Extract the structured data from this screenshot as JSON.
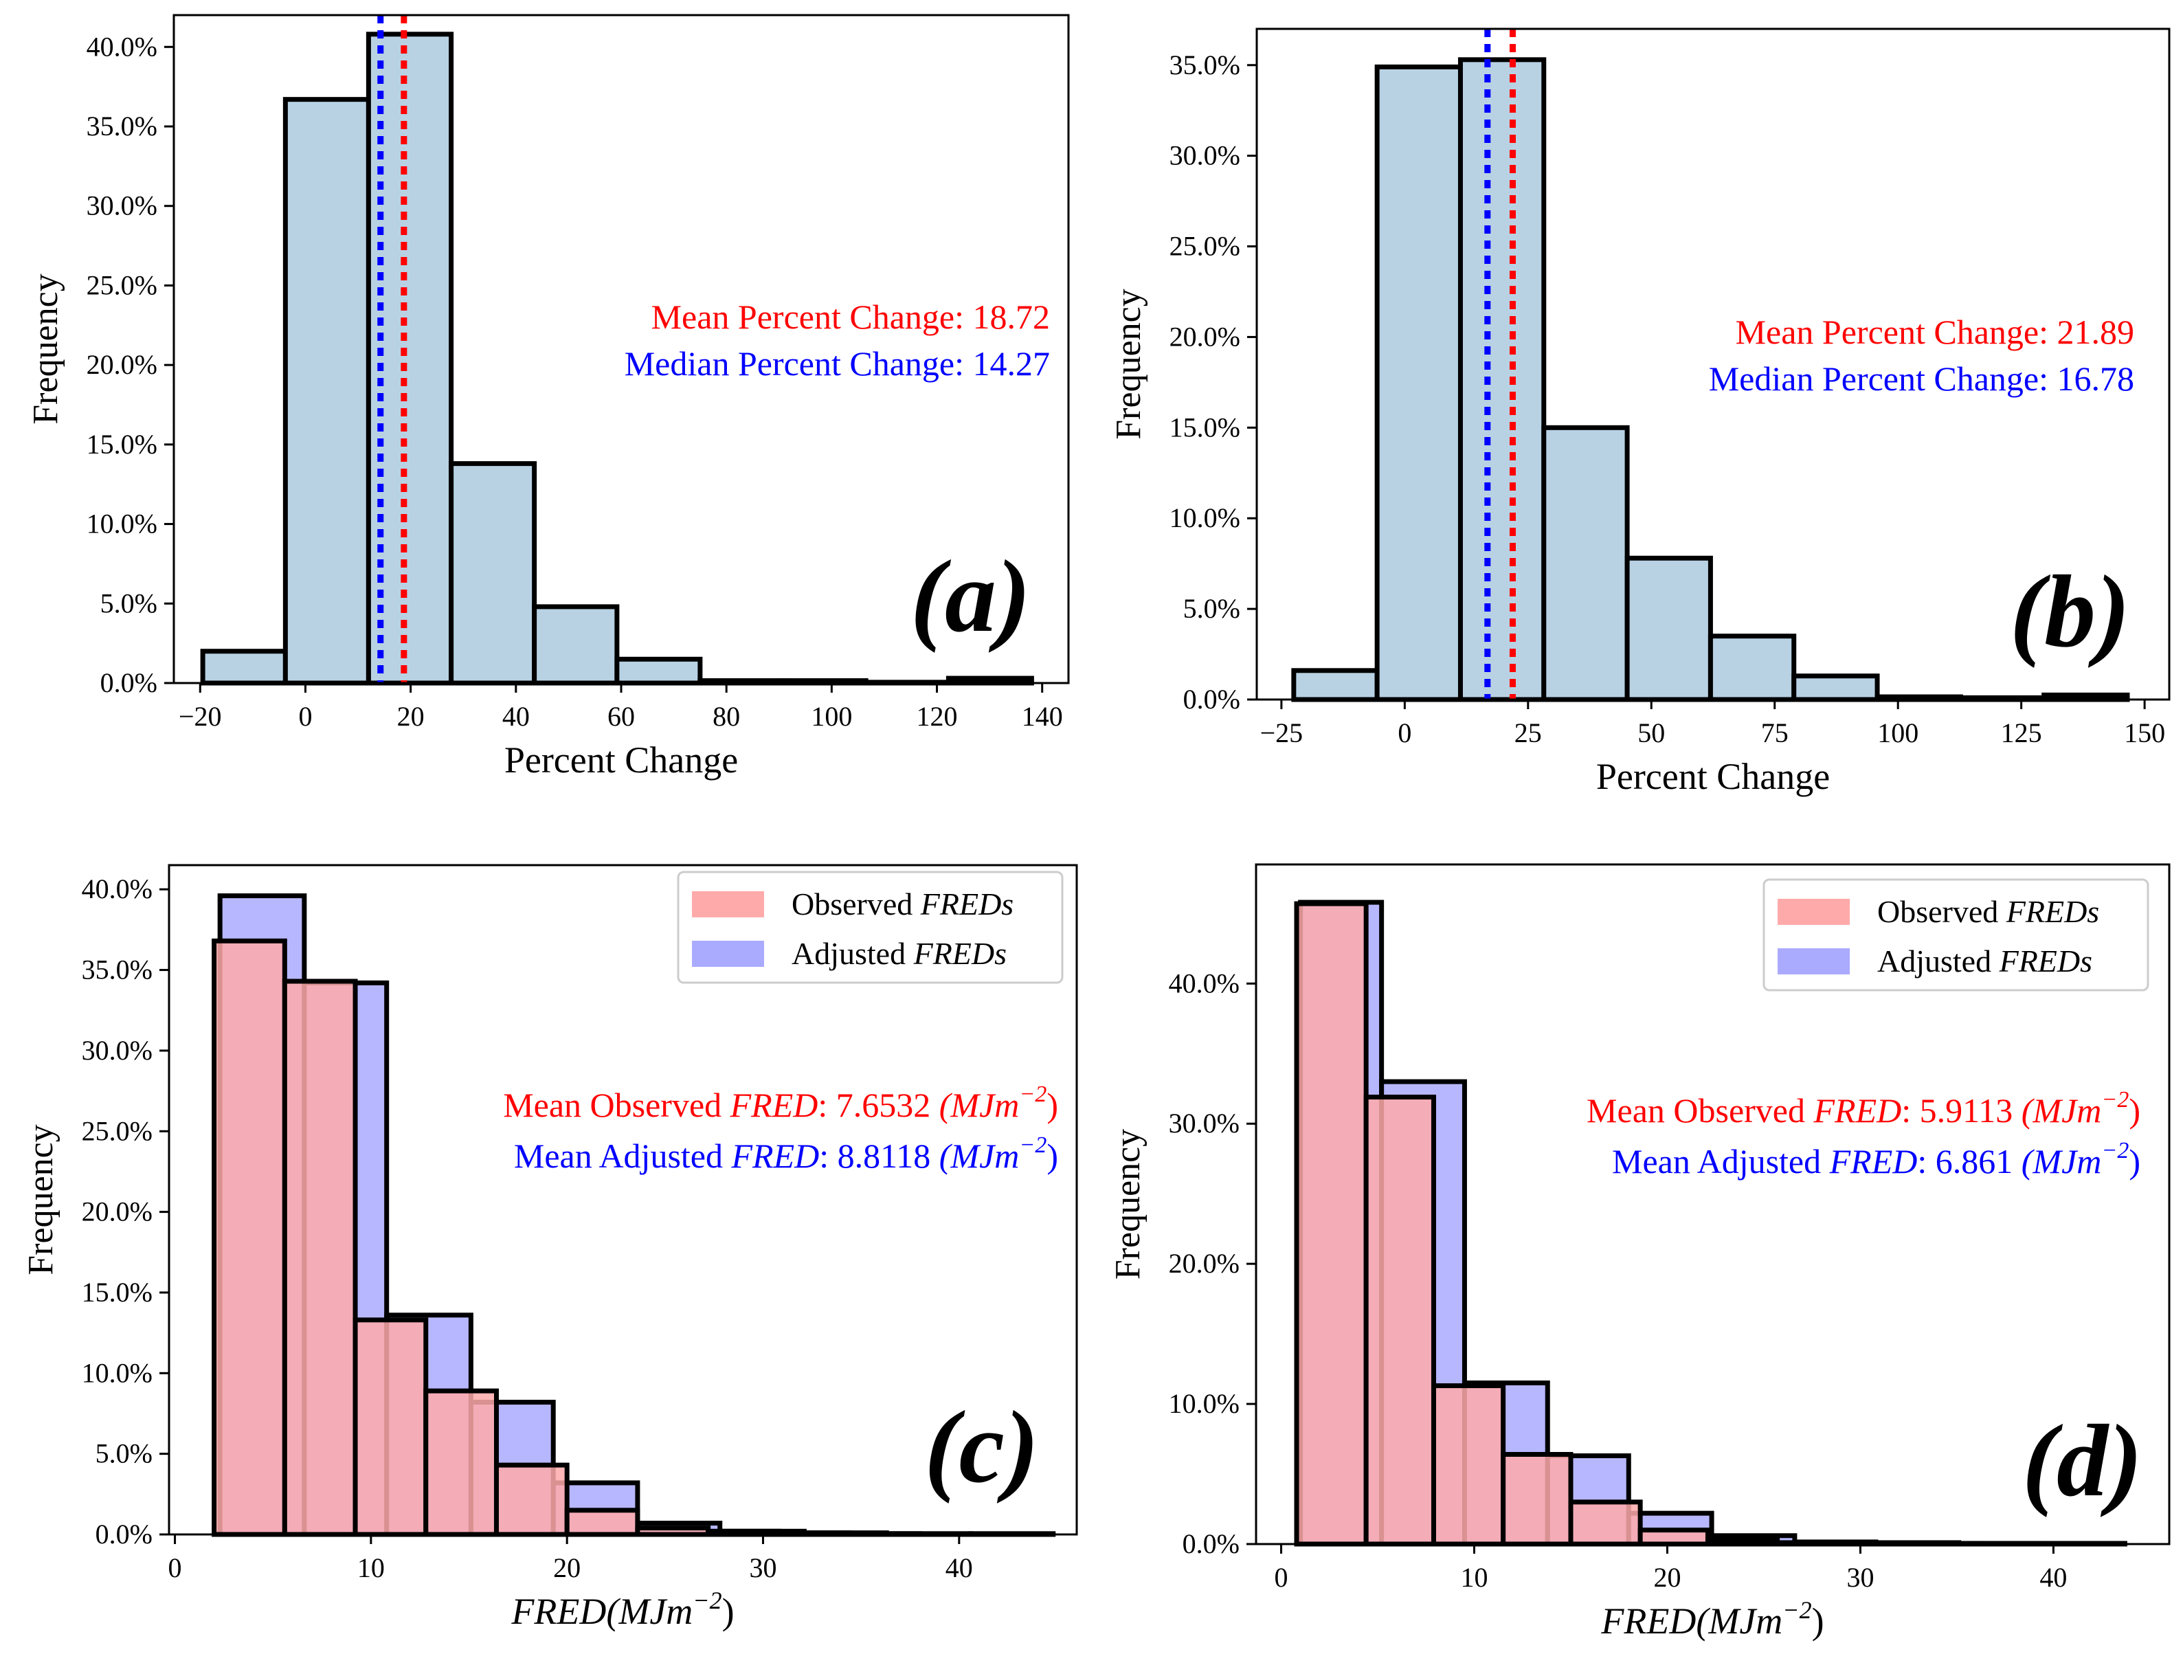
{
  "chart_data": [
    {
      "panel": "a",
      "type": "histogram",
      "panel_label": "(a)",
      "xlabel": "Percent Change",
      "ylabel": "Frequency",
      "xlim": [
        -25,
        145
      ],
      "ylim": [
        0,
        42
      ],
      "xticks": [
        -20,
        0,
        20,
        40,
        60,
        80,
        100,
        120,
        140
      ],
      "xtick_labels": [
        "−20",
        "0",
        "20",
        "40",
        "60",
        "80",
        "100",
        "120",
        "140"
      ],
      "yticks": [
        0,
        5,
        10,
        15,
        20,
        25,
        30,
        35,
        40
      ],
      "ytick_labels": [
        "0.0%",
        "5.0%",
        "10.0%",
        "15.0%",
        "20.0%",
        "25.0%",
        "30.0%",
        "35.0%",
        "40.0%"
      ],
      "bins": [
        {
          "x0": -19.5,
          "x1": -3.8,
          "value": 2.0
        },
        {
          "x0": -3.8,
          "x1": 12.0,
          "value": 36.7
        },
        {
          "x0": 12.0,
          "x1": 27.7,
          "value": 40.8
        },
        {
          "x0": 27.7,
          "x1": 43.5,
          "value": 13.8
        },
        {
          "x0": 43.5,
          "x1": 59.2,
          "value": 4.8
        },
        {
          "x0": 59.2,
          "x1": 75.0,
          "value": 1.5
        },
        {
          "x0": 75.0,
          "x1": 90.7,
          "value": 0.15
        },
        {
          "x0": 90.7,
          "x1": 106.5,
          "value": 0.15
        },
        {
          "x0": 106.5,
          "x1": 122.2,
          "value": 0.05
        },
        {
          "x0": 122.2,
          "x1": 138.0,
          "value": 0.3
        }
      ],
      "bar_color": "#b8d2e4",
      "vlines": [
        {
          "x": 14.27,
          "color": "#0000ff",
          "label": "median"
        },
        {
          "x": 18.72,
          "color": "#ff0000",
          "label": "mean"
        }
      ],
      "annotations": [
        {
          "text": "Mean Percent Change: 18.72",
          "color": "#ff0000"
        },
        {
          "text": "Median Percent Change: 14.27",
          "color": "#0000ff"
        }
      ]
    },
    {
      "panel": "b",
      "type": "histogram",
      "panel_label": "(b)",
      "xlabel": "Percent Change",
      "ylabel": "Frequency",
      "xlim": [
        -30,
        155
      ],
      "ylim": [
        0,
        37
      ],
      "xticks": [
        -25,
        0,
        25,
        50,
        75,
        100,
        125,
        150
      ],
      "xtick_labels": [
        "−25",
        "0",
        "25",
        "50",
        "75",
        "100",
        "125",
        "150"
      ],
      "yticks": [
        0,
        5,
        10,
        15,
        20,
        25,
        30,
        35
      ],
      "ytick_labels": [
        "0.0%",
        "5.0%",
        "10.0%",
        "15.0%",
        "20.0%",
        "25.0%",
        "30.0%",
        "35.0%"
      ],
      "bins": [
        {
          "x0": -22.5,
          "x1": -5.6,
          "value": 1.6
        },
        {
          "x0": -5.6,
          "x1": 11.3,
          "value": 34.9
        },
        {
          "x0": 11.3,
          "x1": 28.2,
          "value": 35.3
        },
        {
          "x0": 28.2,
          "x1": 45.1,
          "value": 15.0
        },
        {
          "x0": 45.1,
          "x1": 62.0,
          "value": 7.8
        },
        {
          "x0": 62.0,
          "x1": 78.9,
          "value": 3.5
        },
        {
          "x0": 78.9,
          "x1": 95.8,
          "value": 1.3
        },
        {
          "x0": 95.8,
          "x1": 112.7,
          "value": 0.15
        },
        {
          "x0": 112.7,
          "x1": 129.6,
          "value": 0.1
        },
        {
          "x0": 129.6,
          "x1": 146.5,
          "value": 0.25
        }
      ],
      "bar_color": "#b8d2e4",
      "vlines": [
        {
          "x": 16.78,
          "color": "#0000ff",
          "label": "median"
        },
        {
          "x": 21.89,
          "color": "#ff0000",
          "label": "mean"
        }
      ],
      "annotations": [
        {
          "text": "Mean Percent Change: 21.89",
          "color": "#ff0000"
        },
        {
          "text": "Median Percent Change: 16.78",
          "color": "#0000ff"
        }
      ]
    },
    {
      "panel": "c",
      "type": "histogram-overlay",
      "panel_label": "(c)",
      "xlabel_main": "FRED",
      "xlabel_unit": "(MJm",
      "xlabel_exp": "−2",
      "xlabel_close": ")",
      "ylabel": "Frequency",
      "xlim": [
        -0.3,
        46
      ],
      "ylim": [
        0,
        41.5
      ],
      "xticks": [
        0,
        10,
        20,
        30,
        40
      ],
      "xtick_labels": [
        "0",
        "10",
        "20",
        "30",
        "40"
      ],
      "yticks": [
        0,
        5,
        10,
        15,
        20,
        25,
        30,
        35,
        40
      ],
      "ytick_labels": [
        "0.0%",
        "5.0%",
        "10.0%",
        "15.0%",
        "20.0%",
        "25.0%",
        "30.0%",
        "35.0%",
        "40.0%"
      ],
      "series": [
        {
          "name": "Adjusted FREDs",
          "color": "#aaaaff",
          "bins": [
            {
              "x0": 2.3,
              "x1": 6.6,
              "value": 39.6
            },
            {
              "x0": 6.6,
              "x1": 10.8,
              "value": 34.2
            },
            {
              "x0": 10.8,
              "x1": 15.1,
              "value": 13.6
            },
            {
              "x0": 15.1,
              "x1": 19.3,
              "value": 8.2
            },
            {
              "x0": 19.3,
              "x1": 23.6,
              "value": 3.2
            },
            {
              "x0": 23.6,
              "x1": 27.8,
              "value": 0.7
            },
            {
              "x0": 27.8,
              "x1": 32.1,
              "value": 0.2
            },
            {
              "x0": 32.1,
              "x1": 36.3,
              "value": 0.1
            },
            {
              "x0": 36.3,
              "x1": 40.6,
              "value": 0.05
            },
            {
              "x0": 40.6,
              "x1": 44.8,
              "value": 0.05
            }
          ]
        },
        {
          "name": "Observed FREDs",
          "color": "#ffaaaa",
          "bins": [
            {
              "x0": 2.0,
              "x1": 5.6,
              "value": 36.8
            },
            {
              "x0": 5.6,
              "x1": 9.2,
              "value": 34.3
            },
            {
              "x0": 9.2,
              "x1": 12.8,
              "value": 13.3
            },
            {
              "x0": 12.8,
              "x1": 16.4,
              "value": 8.9
            },
            {
              "x0": 16.4,
              "x1": 20.0,
              "value": 4.3
            },
            {
              "x0": 20.0,
              "x1": 23.6,
              "value": 1.5
            },
            {
              "x0": 23.6,
              "x1": 27.2,
              "value": 0.4
            },
            {
              "x0": 27.2,
              "x1": 30.8,
              "value": 0.2
            },
            {
              "x0": 30.8,
              "x1": 34.4,
              "value": 0.1
            },
            {
              "x0": 34.4,
              "x1": 38.0,
              "value": 0.05
            }
          ]
        }
      ],
      "legend": [
        {
          "label": "Observed ",
          "label_italic": "FREDs",
          "color": "#ffaaaa"
        },
        {
          "label": "Adjusted ",
          "label_italic": "FREDs",
          "color": "#aaaaff"
        }
      ],
      "annotations": [
        {
          "prefix": "Mean Observed ",
          "italic": "FRED",
          "value": ": 7.6532 ",
          "unit": "(MJm",
          "exp": "−2",
          "close": ")",
          "color": "#ff0000"
        },
        {
          "prefix": "Mean Adjusted ",
          "italic": "FRED",
          "value": ": 8.8118 ",
          "unit": "(MJm",
          "exp": "−2",
          "close": ")",
          "color": "#0000ff"
        }
      ]
    },
    {
      "panel": "d",
      "type": "histogram-overlay",
      "panel_label": "(d)",
      "xlabel_main": "FRED",
      "xlabel_unit": "(MJm",
      "xlabel_exp": "−2",
      "xlabel_close": ")",
      "ylabel": "Frequency",
      "xlim": [
        -1.3,
        46
      ],
      "ylim": [
        0,
        48.5
      ],
      "xticks": [
        0,
        10,
        20,
        30,
        40
      ],
      "xtick_labels": [
        "0",
        "10",
        "20",
        "30",
        "40"
      ],
      "yticks": [
        0,
        10,
        20,
        30,
        40
      ],
      "ytick_labels": [
        "0.0%",
        "10.0%",
        "20.0%",
        "30.0%",
        "40.0%"
      ],
      "series": [
        {
          "name": "Adjusted FREDs",
          "color": "#aaaaff",
          "bins": [
            {
              "x0": 1.0,
              "x1": 5.2,
              "value": 45.8
            },
            {
              "x0": 5.2,
              "x1": 9.5,
              "value": 33.0
            },
            {
              "x0": 9.5,
              "x1": 13.8,
              "value": 11.5
            },
            {
              "x0": 13.8,
              "x1": 18.0,
              "value": 6.3
            },
            {
              "x0": 18.0,
              "x1": 22.3,
              "value": 2.2
            },
            {
              "x0": 22.3,
              "x1": 26.6,
              "value": 0.6
            },
            {
              "x0": 26.6,
              "x1": 30.8,
              "value": 0.15
            },
            {
              "x0": 30.8,
              "x1": 35.1,
              "value": 0.1
            },
            {
              "x0": 35.1,
              "x1": 39.4,
              "value": 0.05
            },
            {
              "x0": 39.4,
              "x1": 43.7,
              "value": 0.05
            }
          ]
        },
        {
          "name": "Observed FREDs",
          "color": "#ffaaaa",
          "bins": [
            {
              "x0": 0.8,
              "x1": 4.4,
              "value": 45.7
            },
            {
              "x0": 4.4,
              "x1": 7.9,
              "value": 31.9
            },
            {
              "x0": 7.9,
              "x1": 11.5,
              "value": 11.3
            },
            {
              "x0": 11.5,
              "x1": 15.0,
              "value": 6.4
            },
            {
              "x0": 15.0,
              "x1": 18.6,
              "value": 3.0
            },
            {
              "x0": 18.6,
              "x1": 22.1,
              "value": 1.0
            },
            {
              "x0": 22.1,
              "x1": 25.7,
              "value": 0.3
            },
            {
              "x0": 25.7,
              "x1": 29.2,
              "value": 0.1
            },
            {
              "x0": 29.2,
              "x1": 32.8,
              "value": 0.05
            },
            {
              "x0": 32.8,
              "x1": 36.3,
              "value": 0.05
            }
          ]
        }
      ],
      "legend": [
        {
          "label": "Observed ",
          "label_italic": "FREDs",
          "color": "#ffaaaa"
        },
        {
          "label": "Adjusted ",
          "label_italic": "FREDs",
          "color": "#aaaaff"
        }
      ],
      "annotations": [
        {
          "prefix": "Mean Observed ",
          "italic": "FRED",
          "value": ": 5.9113 ",
          "unit": "(MJm",
          "exp": "−2",
          "close": ")",
          "color": "#ff0000"
        },
        {
          "prefix": "Mean Adjusted ",
          "italic": "FRED",
          "value": ": 6.861 ",
          "unit": "(MJm",
          "exp": "−2",
          "close": ")",
          "color": "#0000ff"
        }
      ]
    }
  ]
}
